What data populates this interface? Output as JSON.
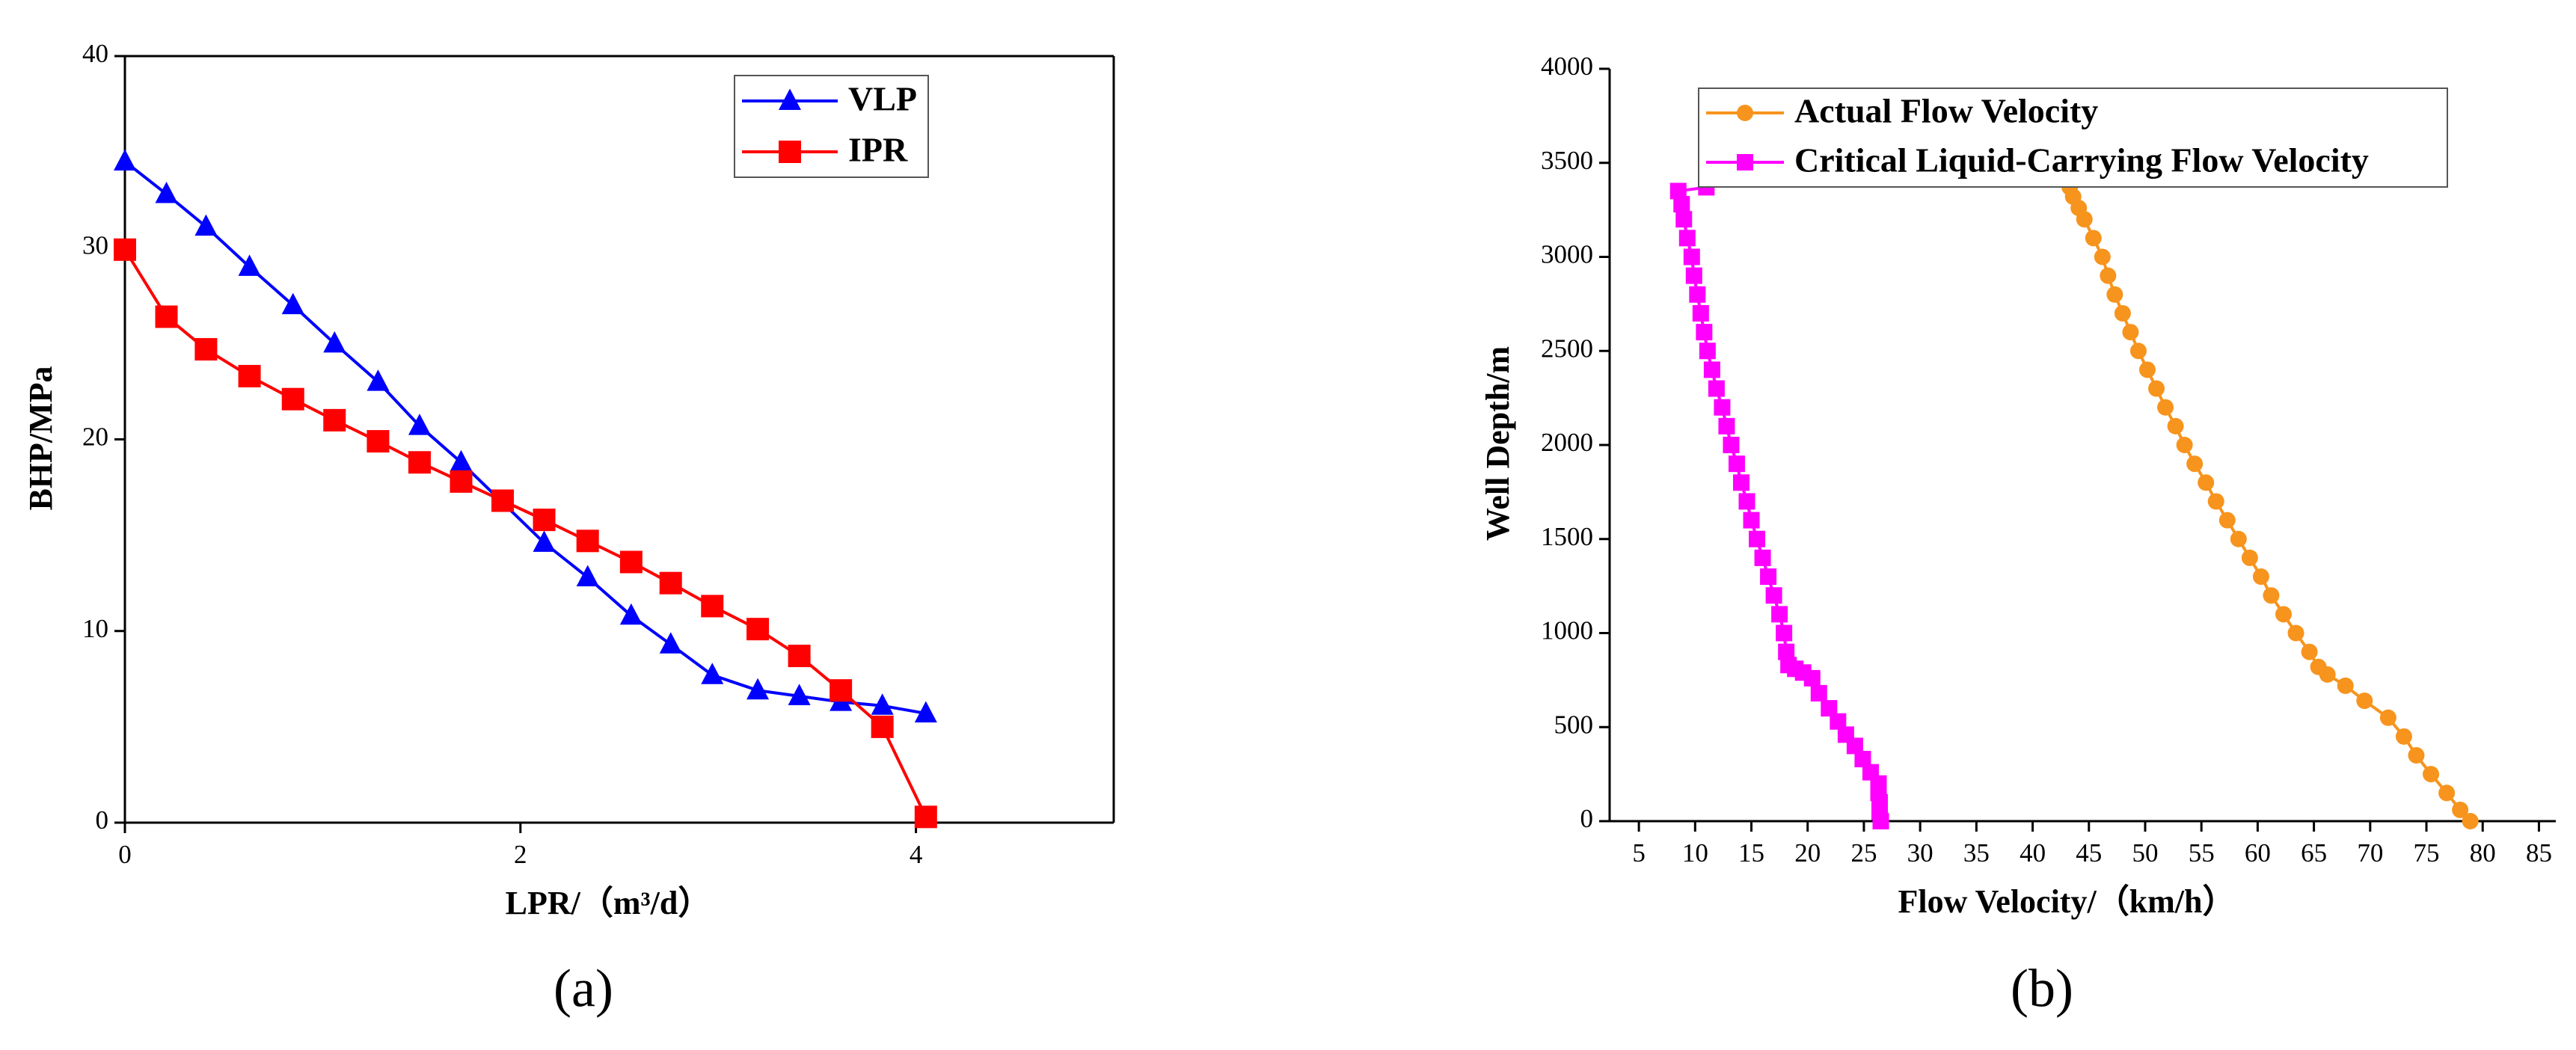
{
  "chart_data": [
    {
      "type": "line",
      "caption": "(a)",
      "x_label": "LPR/（m³/d）",
      "y_label": "BHP/MPa",
      "xlim": [
        0,
        5
      ],
      "ylim": [
        0,
        40
      ],
      "xticks": [
        0,
        2,
        4
      ],
      "yticks": [
        0,
        10,
        20,
        30,
        40
      ],
      "frame": true,
      "legend": "upper right",
      "series": [
        {
          "name": "VLP",
          "color": "#0000ff",
          "marker": "triangle",
          "x": [
            0,
            0.21,
            0.41,
            0.63,
            0.85,
            1.06,
            1.28,
            1.49,
            1.7,
            1.91,
            2.12,
            2.34,
            2.56,
            2.76,
            2.97,
            3.2,
            3.41,
            3.62,
            3.83,
            4.05
          ],
          "values": [
            34.5,
            32.8,
            31.1,
            29.0,
            27.0,
            25.0,
            23.0,
            20.7,
            18.8,
            16.7,
            14.6,
            12.8,
            10.8,
            9.3,
            7.7,
            6.9,
            6.6,
            6.3,
            6.1,
            5.7
          ]
        },
        {
          "name": "IPR",
          "color": "#ff0000",
          "marker": "square",
          "x": [
            0,
            0.21,
            0.41,
            0.63,
            0.85,
            1.06,
            1.28,
            1.49,
            1.7,
            1.91,
            2.12,
            2.34,
            2.56,
            2.76,
            2.97,
            3.2,
            3.41,
            3.62,
            3.83,
            4.05
          ],
          "values": [
            29.9,
            26.4,
            24.7,
            23.3,
            22.1,
            21.0,
            19.9,
            18.8,
            17.8,
            16.8,
            15.8,
            14.7,
            13.6,
            12.5,
            11.3,
            10.1,
            8.7,
            6.9,
            5.0,
            0.3
          ]
        }
      ]
    },
    {
      "type": "scatter",
      "caption": "(b)",
      "x_label": "Flow Velocity/（km/h）",
      "y_label": "Well Depth/m",
      "xlim": [
        2.4,
        86.5
      ],
      "ylim": [
        0,
        4000
      ],
      "xticks": [
        5,
        10,
        15,
        20,
        25,
        30,
        35,
        40,
        45,
        50,
        55,
        60,
        65,
        70,
        75,
        80,
        85
      ],
      "yticks": [
        0,
        500,
        1000,
        1500,
        2000,
        2500,
        3000,
        3500,
        4000
      ],
      "frame": false,
      "legend": "upper left",
      "series": [
        {
          "name": "Actual Flow Velocity",
          "color": "#f7941d",
          "marker": "circle",
          "x": [
            78.9,
            78.0,
            76.8,
            75.4,
            74.1,
            73.0,
            71.6,
            69.5,
            67.8,
            66.2,
            65.4,
            64.6,
            63.4,
            62.3,
            61.2,
            60.3,
            59.3,
            58.3,
            57.3,
            56.3,
            55.4,
            54.4,
            53.5,
            52.7,
            51.8,
            51.0,
            50.2,
            49.4,
            48.7,
            48.0,
            47.3,
            46.7,
            46.2,
            45.4,
            44.6,
            44.1,
            43.6,
            43.3
          ],
          "values": [
            0,
            60,
            150,
            250,
            350,
            450,
            550,
            640,
            720,
            780,
            820,
            900,
            1000,
            1100,
            1200,
            1300,
            1400,
            1500,
            1600,
            1700,
            1800,
            1900,
            2000,
            2100,
            2200,
            2300,
            2400,
            2500,
            2600,
            2700,
            2800,
            2900,
            3000,
            3100,
            3200,
            3260,
            3320,
            3370
          ]
        },
        {
          "name": "Critical Liquid-Carrying Flow Velocity",
          "color": "#ff00ff",
          "marker": "square",
          "x": [
            26.5,
            26.4,
            26.4,
            26.3,
            26.3,
            25.6,
            24.9,
            24.2,
            23.4,
            22.7,
            21.9,
            21.0,
            20.4,
            19.6,
            18.9,
            18.3,
            18.1,
            17.9,
            17.5,
            17.0,
            16.5,
            16.0,
            15.5,
            15.0,
            14.6,
            14.1,
            13.7,
            13.2,
            12.8,
            12.4,
            11.9,
            11.5,
            11.1,
            10.8,
            10.5,
            10.2,
            9.9,
            9.7,
            9.3,
            9.0,
            8.8,
            8.5,
            11.0
          ],
          "values": [
            0,
            50,
            100,
            150,
            200,
            260,
            330,
            400,
            460,
            530,
            600,
            680,
            760,
            790,
            810,
            830,
            900,
            1000,
            1100,
            1200,
            1300,
            1400,
            1500,
            1600,
            1700,
            1800,
            1900,
            2000,
            2100,
            2200,
            2300,
            2400,
            2500,
            2600,
            2700,
            2800,
            2900,
            3000,
            3100,
            3200,
            3280,
            3350,
            3370
          ]
        }
      ]
    }
  ]
}
